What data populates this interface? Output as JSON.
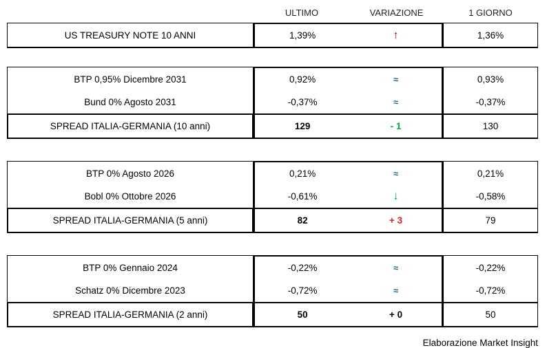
{
  "header": {
    "columns": [
      "ULTIMO",
      "VARIAZIONE",
      "1 GIORNO"
    ]
  },
  "groups": [
    {
      "rows": [
        {
          "label": "US TREASURY NOTE 10 ANNI",
          "ultimo": "1,39%",
          "variazione": "↑",
          "giorno": "1,36%"
        }
      ]
    },
    {
      "rows": [
        {
          "label": "BTP 0,95% Dicembre 2031",
          "ultimo": "0,92%",
          "variazione": "≈",
          "giorno": "0,93%"
        },
        {
          "label": "Bund 0% Agosto 2031",
          "ultimo": "-0,37%",
          "variazione": "≈",
          "giorno": "-0,37%"
        }
      ],
      "spread": {
        "label": "SPREAD ITALIA-GERMANIA (10 anni)",
        "ultimo": "129",
        "variazione": "- 1",
        "giorno": "130"
      }
    },
    {
      "rows": [
        {
          "label": "BTP 0% Agosto 2026",
          "ultimo": "0,21%",
          "variazione": "≈",
          "giorno": "0,21%"
        },
        {
          "label": "Bobl 0% Ottobre 2026",
          "ultimo": "-0,61%",
          "variazione": "↓",
          "giorno": "-0,58%"
        }
      ],
      "spread": {
        "label": "SPREAD ITALIA-GERMANIA (5 anni)",
        "ultimo": "82",
        "variazione": "+ 3",
        "giorno": "79"
      }
    },
    {
      "rows": [
        {
          "label": "BTP 0% Gennaio 2024",
          "ultimo": "-0,22%",
          "variazione": "≈",
          "giorno": "-0,22%"
        },
        {
          "label": "Schatz 0% Dicembre 2023",
          "ultimo": "-0,72%",
          "variazione": "≈",
          "giorno": "-0,72%"
        }
      ],
      "spread": {
        "label": "SPREAD ITALIA-GERMANIA (2 anni)",
        "ultimo": "50",
        "variazione": "+ 0",
        "giorno": "50"
      }
    }
  ],
  "footer": {
    "credit": "Elaborazione Market Insight"
  },
  "colors": {
    "border": "#000000",
    "arrow_up_red": "#c00000",
    "positive_change_red": "#e02020",
    "negative_change_green": "#00a651",
    "approx_equal_teal": "#19688e"
  }
}
